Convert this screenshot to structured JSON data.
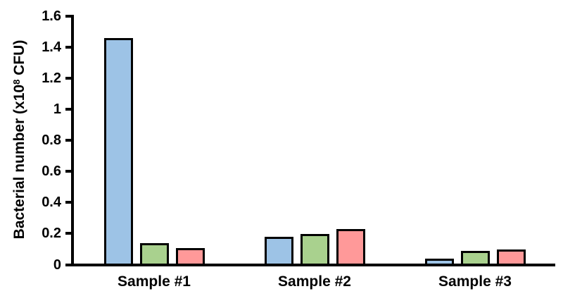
{
  "chart_data": {
    "type": "bar",
    "title": "",
    "ylabel_prefix": "Bacterial number (x10",
    "ylabel_superscript": "8",
    "ylabel_suffix": " CFU)",
    "xlabel": "",
    "categories": [
      "Sample #1",
      "Sample #2",
      "Sample #3"
    ],
    "series": [
      {
        "name": "blue",
        "color": "#9DC3E6",
        "values": [
          1.45,
          0.17,
          0.03
        ]
      },
      {
        "name": "green",
        "color": "#A9D18E",
        "values": [
          0.13,
          0.19,
          0.08
        ]
      },
      {
        "name": "red",
        "color": "#FF9999",
        "values": [
          0.1,
          0.22,
          0.09
        ]
      }
    ],
    "y_ticks": [
      "0",
      "0.2",
      "0.4",
      "0.6",
      "0.8",
      "1",
      "1.2",
      "1.4",
      "1.6"
    ],
    "ylim": [
      0,
      1.6
    ],
    "grid": false,
    "legend": "none",
    "bar_border_color": "#000000",
    "axis_color": "#000000",
    "background": "#FFFFFF"
  }
}
